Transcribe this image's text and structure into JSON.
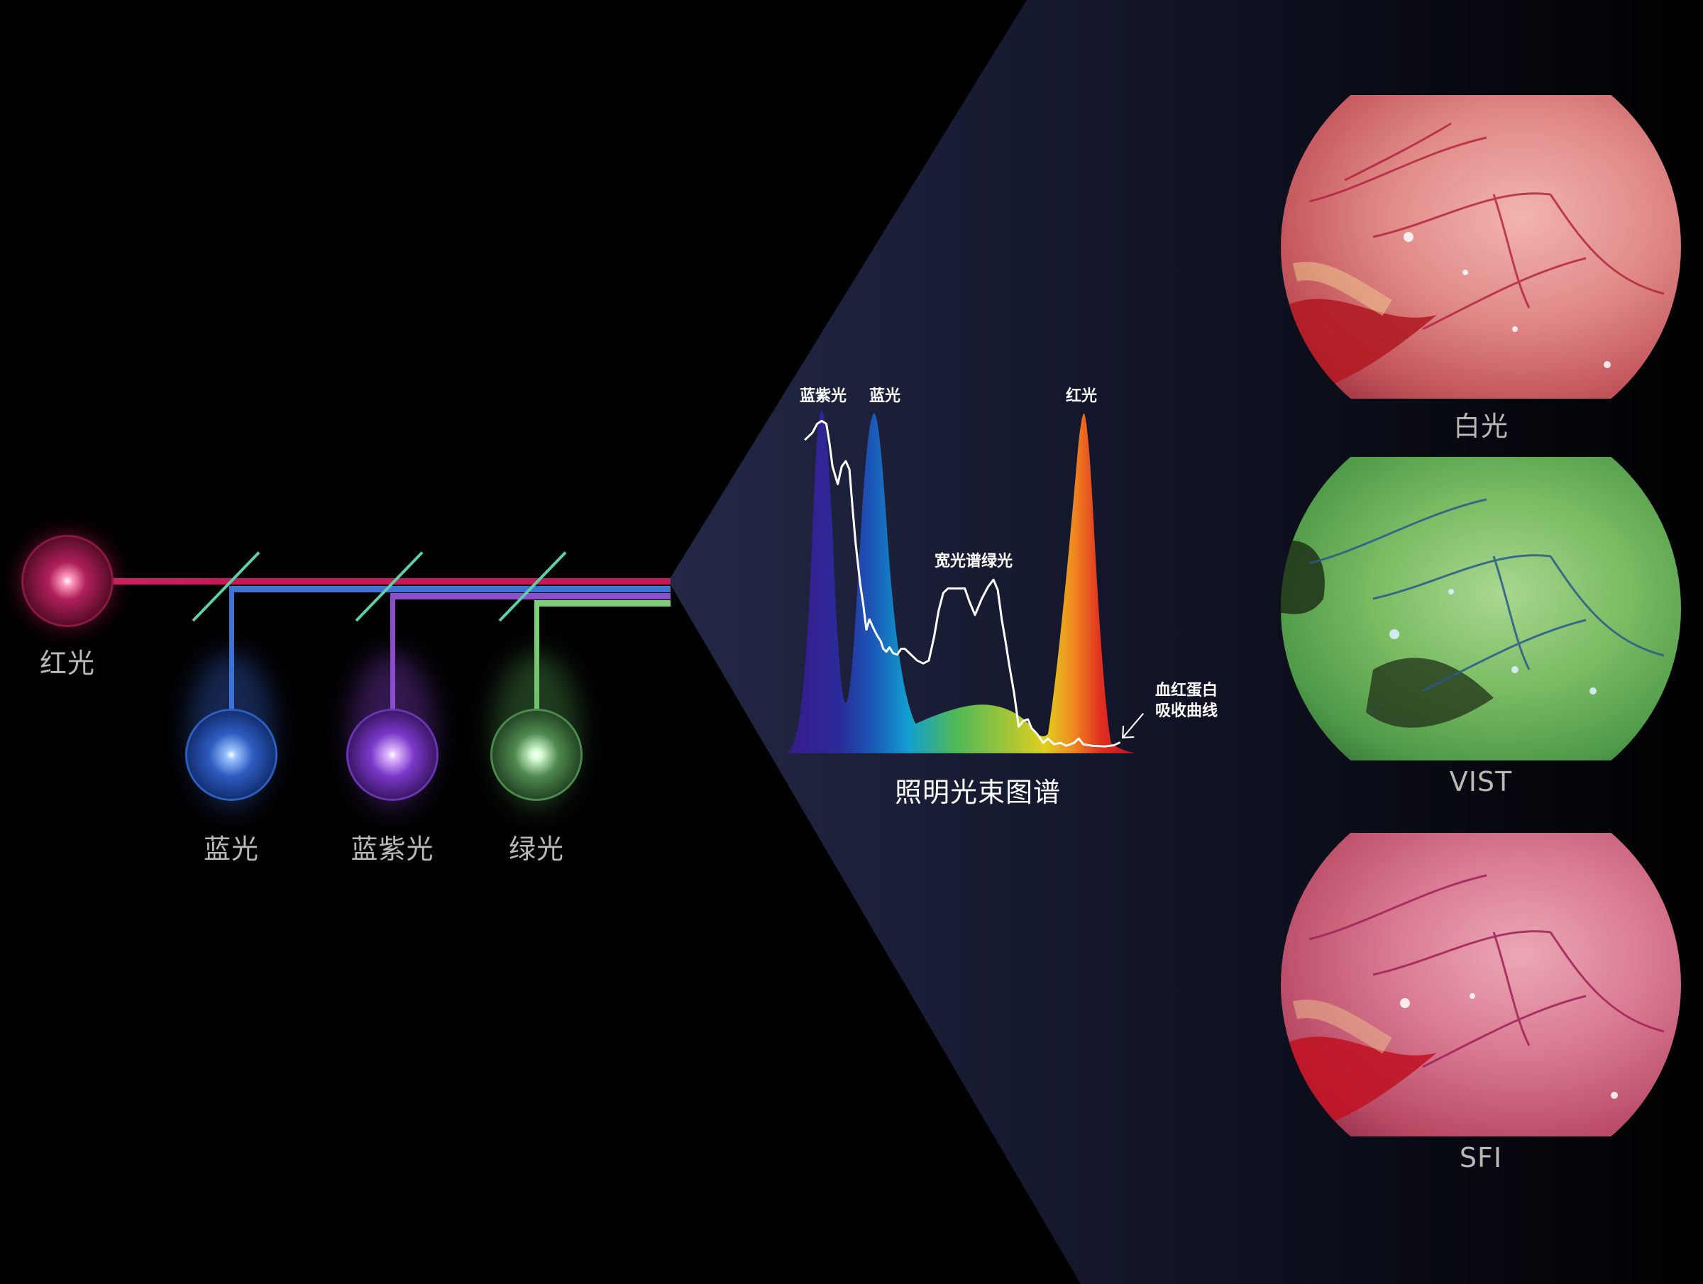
{
  "light_sources": [
    {
      "label": "红光",
      "color": "#c8185a"
    },
    {
      "label": "蓝光",
      "color": "#3f74d6"
    },
    {
      "label": "蓝紫光",
      "color": "#8a4fc9"
    },
    {
      "label": "绿光",
      "color": "#7fce7a"
    }
  ],
  "spectrum": {
    "title": "照明光束图谱",
    "peak_labels": {
      "violet": "蓝紫光",
      "blue": "蓝光",
      "green": "宽光谱绿光",
      "red": "红光"
    },
    "absorption_label_line1": "血红蛋白",
    "absorption_label_line2": "吸收曲线"
  },
  "modes": [
    {
      "label": "白光",
      "tint": "#d86a72"
    },
    {
      "label": "VIST",
      "tint": "#6fae58"
    },
    {
      "label": "SFI",
      "tint": "#d0606e"
    }
  ],
  "colors": {
    "background": "#000000",
    "cone": "#1c2140",
    "mirror": "#5fcfa8",
    "label": "#b9b9b9"
  }
}
